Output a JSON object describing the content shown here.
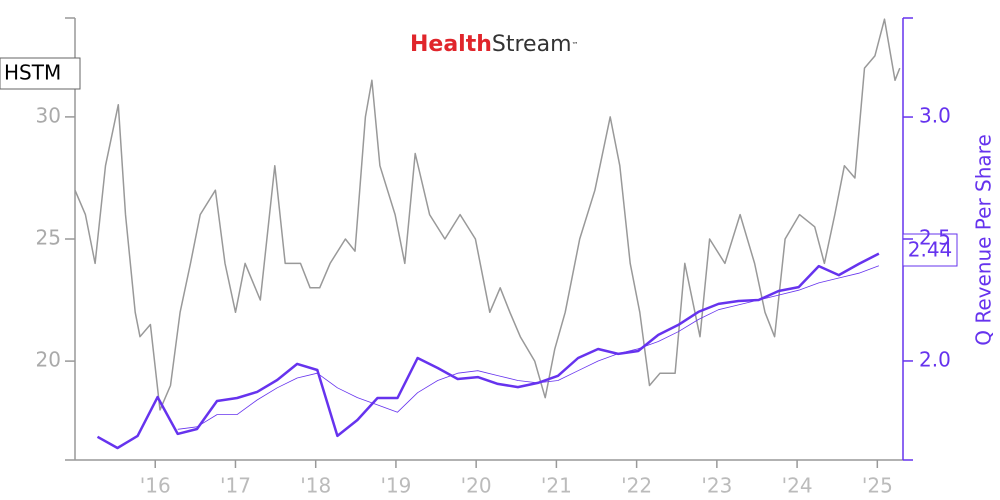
{
  "chart_data": {
    "type": "line",
    "logo": {
      "first": "Health",
      "second": "Stream",
      "mark": "™"
    },
    "ticker": "HSTM",
    "y2label": "Q Revenue Per Share",
    "xlim": [
      2015.0,
      2025.32
    ],
    "xticks": [
      {
        "value": 2016,
        "label": "'16"
      },
      {
        "value": 2017,
        "label": "'17"
      },
      {
        "value": 2018,
        "label": "'18"
      },
      {
        "value": 2019,
        "label": "'19"
      },
      {
        "value": 2020,
        "label": "'20"
      },
      {
        "value": 2021,
        "label": "'21"
      },
      {
        "value": 2022,
        "label": "'22"
      },
      {
        "value": 2023,
        "label": "'23"
      },
      {
        "value": 2024,
        "label": "'24"
      },
      {
        "value": 2025,
        "label": "'25"
      }
    ],
    "ylim": [
      15.95,
      34.05
    ],
    "yticks": [
      20,
      25,
      30
    ],
    "y2lim": [
      1.594,
      3.406
    ],
    "y2ticks": [
      {
        "value": 2,
        "label": "2.0"
      },
      2.5,
      {
        "value": 3,
        "label": "3.0"
      }
    ],
    "series": [
      {
        "axis": "y",
        "color": "#999999",
        "width": 1.5,
        "x": [
          2015.0,
          2015.13,
          2015.25,
          2015.38,
          2015.54,
          2015.63,
          2015.75,
          2015.81,
          2015.94,
          2016.06,
          2016.19,
          2016.31,
          2016.44,
          2016.56,
          2016.75,
          2016.87,
          2017.0,
          2017.12,
          2017.31,
          2017.49,
          2017.62,
          2017.81,
          2017.93,
          2018.05,
          2018.18,
          2018.37,
          2018.49,
          2018.62,
          2018.7,
          2018.8,
          2018.99,
          2019.11,
          2019.24,
          2019.42,
          2019.61,
          2019.8,
          2019.99,
          2020.17,
          2020.3,
          2020.42,
          2020.55,
          2020.73,
          2020.86,
          2020.98,
          2021.11,
          2021.29,
          2021.48,
          2021.67,
          2021.79,
          2021.92,
          2022.04,
          2022.16,
          2022.29,
          2022.48,
          2022.6,
          2022.79,
          2022.91,
          2023.1,
          2023.29,
          2023.47,
          2023.6,
          2023.72,
          2023.85,
          2024.03,
          2024.22,
          2024.34,
          2024.47,
          2024.59,
          2024.72,
          2024.84,
          2024.97,
          2025.09,
          2025.22,
          2025.28
        ],
        "values": [
          27,
          26,
          24,
          28,
          30.5,
          26,
          22,
          21,
          21.5,
          18,
          19,
          22,
          24,
          26,
          27,
          24,
          22,
          24,
          22.5,
          28,
          24,
          24,
          23,
          23,
          24,
          25,
          24.5,
          30,
          31.5,
          28,
          26,
          24,
          28.5,
          26,
          25,
          26,
          25,
          22,
          23,
          22,
          21,
          20,
          18.5,
          20.5,
          22,
          25,
          27,
          30,
          28,
          24,
          22,
          19,
          19.5,
          19.5,
          24,
          21,
          25,
          24,
          26,
          24,
          22,
          21,
          25,
          26,
          25.5,
          24,
          26,
          28,
          27.5,
          32,
          32.5,
          34,
          31.5,
          32
        ]
      },
      {
        "axis": "y2",
        "color": "#6633ee",
        "width": 2.5,
        "x": [
          2015.28,
          2015.53,
          2015.78,
          2016.03,
          2016.28,
          2016.52,
          2016.77,
          2017.02,
          2017.27,
          2017.52,
          2017.77,
          2018.02,
          2018.27,
          2018.52,
          2018.77,
          2019.02,
          2019.27,
          2019.52,
          2019.77,
          2020.02,
          2020.27,
          2020.52,
          2020.77,
          2021.02,
          2021.27,
          2021.52,
          2021.77,
          2022.02,
          2022.27,
          2022.52,
          2022.77,
          2023.02,
          2023.27,
          2023.52,
          2023.77,
          2024.02,
          2024.27,
          2024.52,
          2024.77,
          2025.02
        ],
        "values": [
          1.689,
          1.643,
          1.693,
          1.852,
          1.701,
          1.721,
          1.836,
          1.848,
          1.873,
          1.922,
          1.988,
          1.963,
          1.693,
          1.758,
          1.848,
          1.848,
          2.012,
          1.971,
          1.926,
          1.934,
          1.906,
          1.893,
          1.91,
          1.939,
          2.012,
          2.049,
          2.029,
          2.041,
          2.107,
          2.148,
          2.201,
          2.234,
          2.246,
          2.25,
          2.287,
          2.303,
          2.389,
          2.352,
          2.398,
          2.44
        ]
      },
      {
        "axis": "y2",
        "color": "#6633ee",
        "width": 0.8,
        "x": [
          2015.28,
          2015.53,
          2015.78,
          2016.03,
          2016.28,
          2016.52,
          2016.77,
          2017.02,
          2017.27,
          2017.52,
          2017.77,
          2018.02,
          2018.27,
          2018.52,
          2018.77,
          2019.02,
          2019.27,
          2019.52,
          2019.77,
          2020.02,
          2020.27,
          2020.52,
          2020.77,
          2021.02,
          2021.27,
          2021.52,
          2021.77,
          2022.02,
          2022.27,
          2022.52,
          2022.77,
          2023.02,
          2023.27,
          2023.52,
          2023.77,
          2024.02,
          2024.27,
          2024.52,
          2024.77,
          2025.02
        ],
        "values": [
          null,
          null,
          null,
          null,
          1.72,
          1.73,
          1.78,
          1.78,
          1.84,
          1.89,
          1.93,
          1.95,
          1.89,
          1.85,
          1.82,
          1.79,
          1.87,
          1.92,
          1.95,
          1.96,
          1.94,
          1.92,
          1.91,
          1.92,
          1.96,
          2.0,
          2.03,
          2.05,
          2.08,
          2.12,
          2.17,
          2.21,
          2.23,
          2.25,
          2.27,
          2.29,
          2.32,
          2.34,
          2.36,
          2.39
        ]
      }
    ]
  }
}
